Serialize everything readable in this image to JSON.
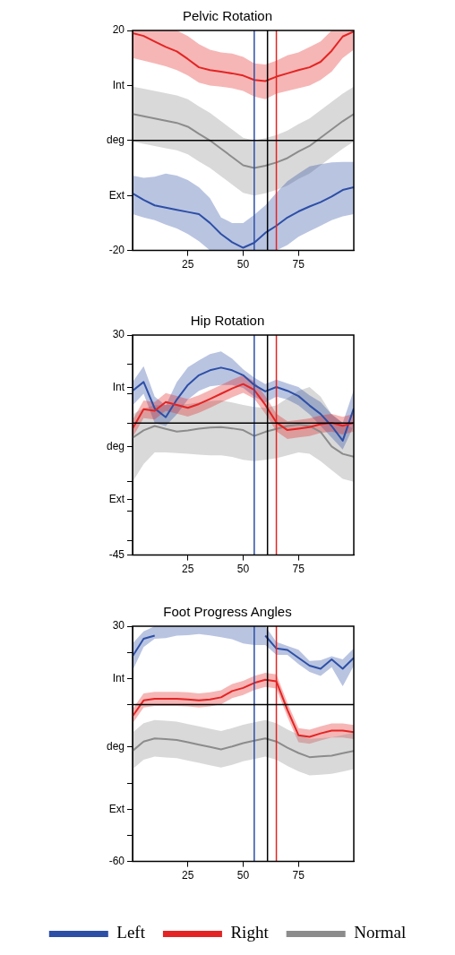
{
  "chart_data": [
    {
      "type": "line",
      "title": "Pelvic Rotation",
      "x": [
        0,
        5,
        10,
        15,
        20,
        25,
        30,
        35,
        40,
        45,
        50,
        55,
        60,
        65,
        70,
        75,
        80,
        85,
        90,
        95,
        100
      ],
      "xlim": [
        0,
        100
      ],
      "xticks": [
        25,
        50,
        75
      ],
      "ylim": [
        -20,
        20
      ],
      "yticks": [
        {
          "value": 20,
          "label": "20"
        },
        {
          "value": 10,
          "label": "Int"
        },
        {
          "value": 0,
          "label": "deg"
        },
        {
          "value": -10,
          "label": "Ext"
        },
        {
          "value": -20,
          "label": "-20"
        }
      ],
      "grid": false,
      "legend": false,
      "series": [
        {
          "color": "#8c8c8c",
          "values": [
            4.8,
            4.4,
            4,
            3.6,
            3.2,
            2.5,
            1.2,
            0,
            -1.5,
            -3,
            -4.5,
            -5,
            -4.6,
            -4,
            -3.2,
            -2,
            -1,
            0.5,
            2,
            3.5,
            4.8
          ],
          "lower": [
            -0.2,
            -0.6,
            -1,
            -1.4,
            -1.8,
            -2.5,
            -3.8,
            -5,
            -6.5,
            -8,
            -9.5,
            -10,
            -9.6,
            -9,
            -8.2,
            -7,
            -6,
            -4.5,
            -3,
            -1.5,
            -0.2
          ],
          "upper": [
            9.8,
            9.4,
            9,
            8.6,
            8.2,
            7.5,
            6.2,
            5,
            3.5,
            2,
            0.5,
            0,
            0.4,
            1,
            1.8,
            3,
            4,
            5.5,
            7,
            8.5,
            9.8
          ]
        },
        {
          "color": "#2d4fa6",
          "values": [
            -9.6,
            -10.8,
            -11.8,
            -12.2,
            -12.6,
            -13,
            -13.4,
            -15,
            -17,
            -18.5,
            -19.5,
            -18.6,
            -16.8,
            -15.5,
            -14,
            -12.9,
            -12,
            -11.2,
            -10.2,
            -9,
            -8.5
          ],
          "lower": [
            -13.4,
            -14,
            -14.5,
            -15.3,
            -16,
            -17,
            -18.3,
            -20,
            -20,
            -20,
            -20,
            -20,
            -20,
            -20,
            -19,
            -17.5,
            -16.5,
            -15.5,
            -14.5,
            -13.8,
            -13.4
          ],
          "upper": [
            -6.4,
            -6.8,
            -6.6,
            -6,
            -6.4,
            -7.2,
            -8.5,
            -10.5,
            -14,
            -15,
            -15,
            -13.5,
            -11.8,
            -9.5,
            -7.4,
            -6,
            -4.7,
            -4.3,
            -4,
            -3.9,
            -3.9
          ]
        },
        {
          "color": "#e42424",
          "values": [
            19.5,
            19,
            18,
            17,
            16.2,
            14.8,
            13.3,
            12.8,
            12.5,
            12.2,
            11.8,
            11,
            10.8,
            11.6,
            12.2,
            12.8,
            13.3,
            14.3,
            16.3,
            18.9,
            19.8
          ],
          "lower": [
            15,
            14.5,
            14,
            13.5,
            12.8,
            11.8,
            10.5,
            10,
            9.8,
            9.5,
            9,
            8,
            7.5,
            8.5,
            9,
            9.5,
            10,
            11,
            12.5,
            15,
            16.5
          ],
          "upper": [
            20,
            20,
            20,
            20,
            20,
            19,
            17.5,
            16.5,
            16,
            15.8,
            15.2,
            14,
            13.8,
            14.5,
            15.5,
            16,
            17,
            18,
            20,
            20,
            20
          ]
        }
      ],
      "ref_lines": [
        {
          "axis": "x",
          "value": 55,
          "color": "#2d4fa6"
        },
        {
          "axis": "x",
          "value": 61,
          "color": "#000000"
        },
        {
          "axis": "x",
          "value": 65,
          "color": "#e42424"
        },
        {
          "axis": "y",
          "value": 0,
          "color": "#000000"
        }
      ]
    },
    {
      "type": "line",
      "title": "Hip Rotation",
      "x": [
        0,
        5,
        10,
        15,
        20,
        25,
        30,
        35,
        40,
        45,
        50,
        55,
        60,
        65,
        70,
        75,
        80,
        85,
        90,
        95,
        100
      ],
      "xlim": [
        0,
        100
      ],
      "xticks": [
        25,
        50,
        75
      ],
      "ylim": [
        -45,
        30
      ],
      "yticks": [
        {
          "value": 30,
          "label": "30"
        },
        {
          "value": 20,
          "label": null
        },
        {
          "value": 12,
          "label": "Int"
        },
        {
          "value": 10,
          "label": null
        },
        {
          "value": 0,
          "label": null
        },
        {
          "value": -8,
          "label": "deg"
        },
        {
          "value": -20,
          "label": null
        },
        {
          "value": -26,
          "label": "Ext"
        },
        {
          "value": -30,
          "label": null
        },
        {
          "value": -40,
          "label": null
        },
        {
          "value": -45,
          "label": "-45"
        }
      ],
      "grid": false,
      "legend": false,
      "series": [
        {
          "color": "#8c8c8c",
          "values": [
            -5,
            -2.5,
            -1,
            -2,
            -2.9,
            -2.5,
            -1.9,
            -1.5,
            -1.4,
            -1.8,
            -2.4,
            -4.4,
            -3,
            -2,
            -1,
            -0.5,
            -1,
            -3,
            -8,
            -10.5,
            -11.5
          ],
          "lower": [
            -20,
            -14,
            -10,
            -10,
            -10.2,
            -10.5,
            -10.8,
            -11,
            -11,
            -11.5,
            -12.5,
            -13,
            -12.5,
            -12,
            -11,
            -10,
            -10.5,
            -13,
            -16,
            -19,
            -20
          ],
          "upper": [
            3,
            5,
            6,
            6.2,
            6.2,
            6.5,
            7,
            7.5,
            7.8,
            7,
            6.2,
            5.5,
            5.2,
            6,
            8.5,
            11,
            12.3,
            9,
            3,
            0,
            -2
          ]
        },
        {
          "color": "#2d4fa6",
          "values": [
            11,
            14,
            5,
            2,
            8,
            13,
            16.3,
            18,
            18.9,
            18,
            16.3,
            13,
            10.8,
            12.3,
            11,
            9.2,
            6,
            3.1,
            -1,
            -6,
            5
          ],
          "lower": [
            6,
            10,
            0,
            -1,
            3,
            8,
            11,
            12.5,
            13,
            13,
            12,
            9,
            7,
            9,
            8,
            6,
            3,
            -1,
            -5,
            -9,
            -1
          ],
          "upper": [
            14,
            19.4,
            9,
            6,
            14,
            19,
            21.4,
            23.5,
            24.4,
            22,
            18.3,
            15.5,
            13.3,
            14.8,
            13.5,
            12.3,
            9.5,
            7.2,
            3,
            0.1,
            11.3
          ]
        },
        {
          "color": "#e42424",
          "values": [
            -1.9,
            4.7,
            4.2,
            7.2,
            6.2,
            5.2,
            6.5,
            8.2,
            10,
            11.8,
            13.3,
            11.3,
            6.2,
            0.2,
            -2.4,
            -1.9,
            -1.4,
            -0.4,
            0.1,
            -0.9,
            0.1
          ],
          "lower": [
            -4.9,
            1.7,
            1.2,
            4.2,
            3.2,
            2.2,
            3.5,
            5.2,
            7,
            8.8,
            10.3,
            8.3,
            3.2,
            -2.8,
            -5.4,
            -4.9,
            -4.4,
            -3.4,
            -2.9,
            -3.9,
            -2.9
          ],
          "upper": [
            1.1,
            7.7,
            7.2,
            10.2,
            9.2,
            8.2,
            9.5,
            11.2,
            13,
            14.8,
            16.3,
            14.3,
            9.2,
            3.2,
            0.6,
            1.1,
            1.6,
            2.6,
            3.1,
            2.1,
            3.1
          ]
        }
      ],
      "ref_lines": [
        {
          "axis": "x",
          "value": 55,
          "color": "#2d4fa6"
        },
        {
          "axis": "x",
          "value": 61,
          "color": "#000000"
        },
        {
          "axis": "x",
          "value": 65,
          "color": "#e42424"
        },
        {
          "axis": "y",
          "value": 0,
          "color": "#000000"
        }
      ]
    },
    {
      "type": "line",
      "title": "Foot Progress Angles",
      "x": [
        0,
        5,
        10,
        15,
        20,
        25,
        30,
        35,
        40,
        45,
        50,
        55,
        60,
        65,
        70,
        75,
        80,
        85,
        90,
        95,
        100
      ],
      "xlim": [
        0,
        100
      ],
      "xticks": [
        25,
        50,
        75
      ],
      "ylim": [
        -60,
        30
      ],
      "yticks": [
        {
          "value": 30,
          "label": "30"
        },
        {
          "value": 20,
          "label": null
        },
        {
          "value": 10,
          "label": "Int"
        },
        {
          "value": 0,
          "label": null
        },
        {
          "value": -16,
          "label": "deg"
        },
        {
          "value": -30,
          "label": null
        },
        {
          "value": -40,
          "label": "Ext"
        },
        {
          "value": -50,
          "label": null
        },
        {
          "value": -60,
          "label": "-60"
        }
      ],
      "grid": false,
      "legend": "bottom",
      "series": [
        {
          "name": "Left",
          "color": "#2d4fa6",
          "values": [
            18.5,
            25.2,
            26.4,
            null,
            null,
            null,
            null,
            null,
            null,
            null,
            null,
            null,
            26.4,
            21.5,
            20.9,
            17.9,
            14.9,
            13.7,
            17.3,
            13.7,
            17.9
          ],
          "lower": [
            13,
            22,
            25.2,
            25.5,
            26.4,
            26.6,
            27,
            26.5,
            25.8,
            25,
            23.4,
            22.8,
            22.8,
            19,
            19,
            15.5,
            12.5,
            11,
            14.3,
            7,
            14.9
          ],
          "upper": [
            23.4,
            28,
            30,
            30,
            30,
            30,
            30,
            30,
            30,
            30,
            30,
            30,
            30,
            24,
            22.5,
            21,
            16.7,
            17,
            18.5,
            17.3,
            21.5
          ]
        },
        {
          "name": "Right",
          "color": "#e42424",
          "values": [
            -4.4,
            1.6,
            2.2,
            2.2,
            2.2,
            2,
            1.6,
            2,
            2.8,
            5.2,
            6.4,
            8.3,
            9.5,
            8.9,
            -2,
            -11.7,
            -12.3,
            -11,
            -9.9,
            -9.9,
            -10.5
          ],
          "lower": [
            -7.2,
            -1.1,
            -0.5,
            -0.5,
            -0.5,
            -0.7,
            -1.1,
            -0.7,
            0.1,
            2.5,
            3.7,
            5.6,
            6.8,
            6.2,
            -4.7,
            -14.4,
            -15,
            -13.7,
            -12.6,
            -12.6,
            -13.2
          ],
          "upper": [
            -1.7,
            4.3,
            4.9,
            4.9,
            4.9,
            4.7,
            4.3,
            4.7,
            5.5,
            7.9,
            9.1,
            11,
            12.2,
            11.6,
            0.7,
            -9,
            -9.6,
            -8.3,
            -7.2,
            -7.2,
            -7.8
          ]
        },
        {
          "name": "Normal",
          "color": "#8c8c8c",
          "values": [
            -17.7,
            -14.1,
            -12.9,
            -13.2,
            -13.5,
            -14.4,
            -15.3,
            -16.2,
            -17.1,
            -16,
            -14.7,
            -13.8,
            -12.9,
            -14.1,
            -16.5,
            -18.5,
            -20.1,
            -19.8,
            -19.5,
            -18.6,
            -17.7
          ],
          "lower": [
            -24.7,
            -21.1,
            -19.9,
            -20.2,
            -20.5,
            -21.4,
            -22.3,
            -23.2,
            -24.1,
            -23,
            -21.7,
            -20.8,
            -19.9,
            -21.1,
            -23.5,
            -25.5,
            -27.1,
            -26.8,
            -26.5,
            -25.6,
            -24.7
          ],
          "upper": [
            -10.7,
            -7.1,
            -5.9,
            -6.2,
            -6.5,
            -7.4,
            -8.3,
            -9.2,
            -10.1,
            -9,
            -7.7,
            -6.8,
            -5.9,
            -7.1,
            -9.5,
            -11.5,
            -13.1,
            -12.8,
            -12.5,
            -11.6,
            -10.7
          ]
        }
      ],
      "ref_lines": [
        {
          "axis": "x",
          "value": 55,
          "color": "#2d4fa6"
        },
        {
          "axis": "x",
          "value": 61,
          "color": "#000000"
        },
        {
          "axis": "x",
          "value": 65,
          "color": "#e42424"
        },
        {
          "axis": "y",
          "value": 0,
          "color": "#000000"
        }
      ]
    }
  ]
}
